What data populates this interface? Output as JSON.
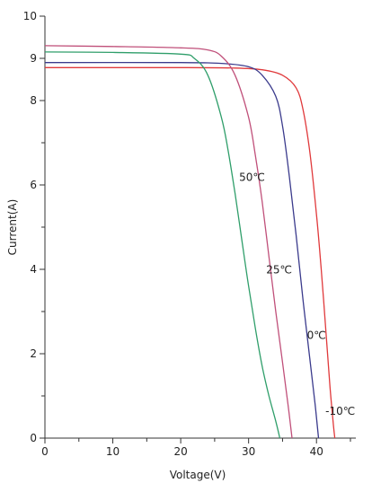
{
  "chart_data": {
    "type": "line",
    "xlabel": "Voltage(V)",
    "ylabel": "Current(A)",
    "xlim": [
      0,
      45
    ],
    "ylim": [
      0,
      10
    ],
    "x_ticks": [
      0,
      10,
      20,
      30,
      40
    ],
    "y_ticks": [
      0,
      2,
      4,
      6,
      8,
      9,
      10
    ],
    "x_tick_labels": [
      "0",
      "10",
      "20",
      "30",
      "40"
    ],
    "y_tick_labels": [
      "0",
      "2",
      "4",
      "6",
      "8",
      "9",
      "10"
    ],
    "grid": false,
    "series": [
      {
        "name": "-10℃",
        "color": "#e0393b",
        "points": [
          [
            0,
            8.78
          ],
          [
            20,
            8.78
          ],
          [
            28,
            8.77
          ],
          [
            32,
            8.73
          ],
          [
            35,
            8.6
          ],
          [
            37,
            8.3
          ],
          [
            38,
            7.8
          ],
          [
            39,
            6.8
          ],
          [
            40,
            5.3
          ],
          [
            40.7,
            4.0
          ],
          [
            41.4,
            2.5
          ],
          [
            42,
            1.2
          ],
          [
            42.5,
            0.3
          ],
          [
            42.7,
            0
          ]
        ]
      },
      {
        "name": "0℃",
        "color": "#3a3a8c",
        "points": [
          [
            0,
            8.9
          ],
          [
            20,
            8.9
          ],
          [
            26,
            8.88
          ],
          [
            30,
            8.8
          ],
          [
            32,
            8.6
          ],
          [
            34,
            8.1
          ],
          [
            35,
            7.4
          ],
          [
            36,
            6.2
          ],
          [
            37,
            4.8
          ],
          [
            38,
            3.3
          ],
          [
            39,
            1.9
          ],
          [
            39.8,
            0.8
          ],
          [
            40.3,
            0
          ]
        ]
      },
      {
        "name": "25℃",
        "color": "#c0507a",
        "points": [
          [
            0,
            9.3
          ],
          [
            10,
            9.28
          ],
          [
            20,
            9.25
          ],
          [
            24,
            9.2
          ],
          [
            26,
            9.05
          ],
          [
            28,
            8.6
          ],
          [
            30,
            7.6
          ],
          [
            31,
            6.7
          ],
          [
            32,
            5.6
          ],
          [
            33,
            4.3
          ],
          [
            34,
            3.0
          ],
          [
            35,
            1.8
          ],
          [
            35.8,
            0.8
          ],
          [
            36.4,
            0
          ]
        ]
      },
      {
        "name": "50℃",
        "color": "#2f9e6a",
        "points": [
          [
            0,
            9.15
          ],
          [
            10,
            9.14
          ],
          [
            20,
            9.1
          ],
          [
            22,
            9.0
          ],
          [
            24,
            8.6
          ],
          [
            26,
            7.6
          ],
          [
            27,
            6.8
          ],
          [
            28,
            5.8
          ],
          [
            29,
            4.7
          ],
          [
            30,
            3.6
          ],
          [
            31,
            2.6
          ],
          [
            32,
            1.7
          ],
          [
            33,
            1.0
          ],
          [
            34,
            0.4
          ],
          [
            34.6,
            0
          ]
        ]
      }
    ],
    "annotations": [
      {
        "text": "50℃",
        "x": 30.5,
        "y": 6.1
      },
      {
        "text": "25℃",
        "x": 34.5,
        "y": 3.9
      },
      {
        "text": "0℃",
        "x": 40.0,
        "y": 2.35
      },
      {
        "text": "-10℃",
        "x": 43.5,
        "y": 0.55
      }
    ]
  }
}
